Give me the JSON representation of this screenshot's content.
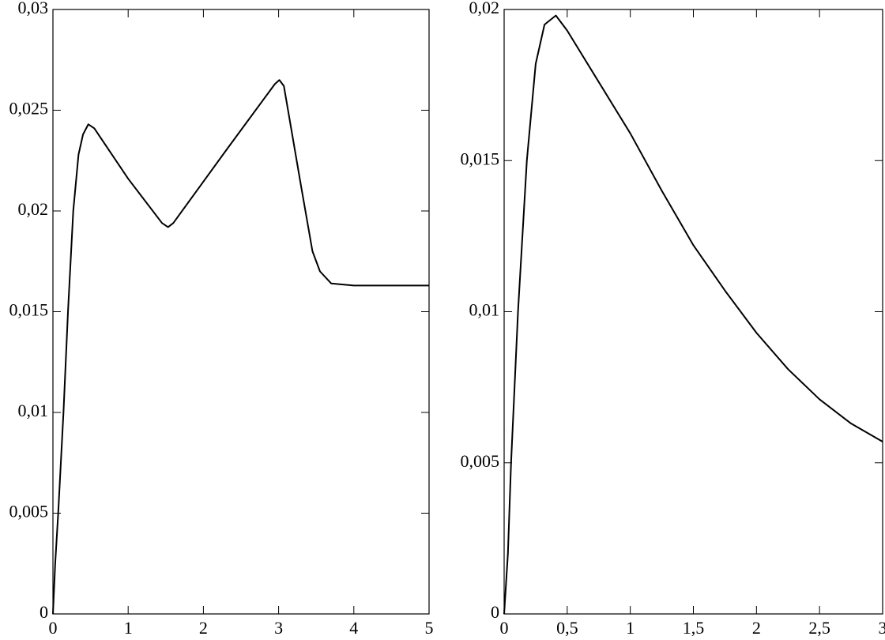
{
  "chart_data": [
    {
      "type": "line",
      "x": [
        0,
        0.03,
        0.07,
        0.14,
        0.2,
        0.27,
        0.34,
        0.4,
        0.47,
        0.55,
        1.0,
        1.45,
        1.53,
        1.6,
        2.3,
        2.95,
        3.01,
        3.07,
        3.3,
        3.45,
        3.55,
        3.7,
        4.0,
        5
      ],
      "series": [
        {
          "color": "#000000",
          "values": [
            0,
            0.0025,
            0.005,
            0.01,
            0.015,
            0.02,
            0.0228,
            0.0238,
            0.0243,
            0.0241,
            0.0216,
            0.0194,
            0.0192,
            0.0194,
            0.023,
            0.0263,
            0.0265,
            0.0262,
            0.0212,
            0.018,
            0.017,
            0.0164,
            0.0163,
            0.0163
          ]
        }
      ],
      "xlim": [
        0,
        5
      ],
      "xticks": [
        0,
        1,
        2,
        3,
        4,
        5
      ],
      "ylim": [
        0,
        0.03
      ],
      "yticks": [
        0,
        {
          "value": 0.005,
          "label": "0,005"
        },
        {
          "value": 0.01,
          "label": "0,01"
        },
        {
          "value": 0.015,
          "label": "0,015"
        },
        {
          "value": 0.02,
          "label": "0,02"
        },
        {
          "value": 0.025,
          "label": "0,025"
        },
        {
          "value": 0.03,
          "label": "0,03"
        }
      ]
    },
    {
      "type": "line",
      "x": [
        0,
        0.03,
        0.055,
        0.11,
        0.18,
        0.25,
        0.32,
        0.41,
        0.5,
        0.75,
        1,
        1.25,
        1.5,
        1.75,
        2,
        2.25,
        2.5,
        2.75,
        3
      ],
      "series": [
        {
          "color": "#000000",
          "values": [
            0,
            0.002,
            0.005,
            0.01,
            0.015,
            0.0182,
            0.0195,
            0.0198,
            0.0193,
            0.0176,
            0.0159,
            0.014,
            0.0122,
            0.0107,
            0.0093,
            0.0081,
            0.0071,
            0.0063,
            0.0057
          ]
        }
      ],
      "xlim": [
        0,
        3
      ],
      "xticks": [
        0,
        {
          "value": 0.5,
          "label": "0,5"
        },
        1,
        {
          "value": 1.5,
          "label": "1,5"
        },
        2,
        {
          "value": 2.5,
          "label": "2,5"
        },
        3
      ],
      "ylim": [
        0,
        0.02
      ],
      "yticks": [
        0,
        {
          "value": 0.005,
          "label": "0,005"
        },
        {
          "value": 0.01,
          "label": "0,01"
        },
        {
          "value": 0.015,
          "label": "0,015"
        },
        {
          "value": 0.02,
          "label": "0,02"
        }
      ]
    }
  ]
}
